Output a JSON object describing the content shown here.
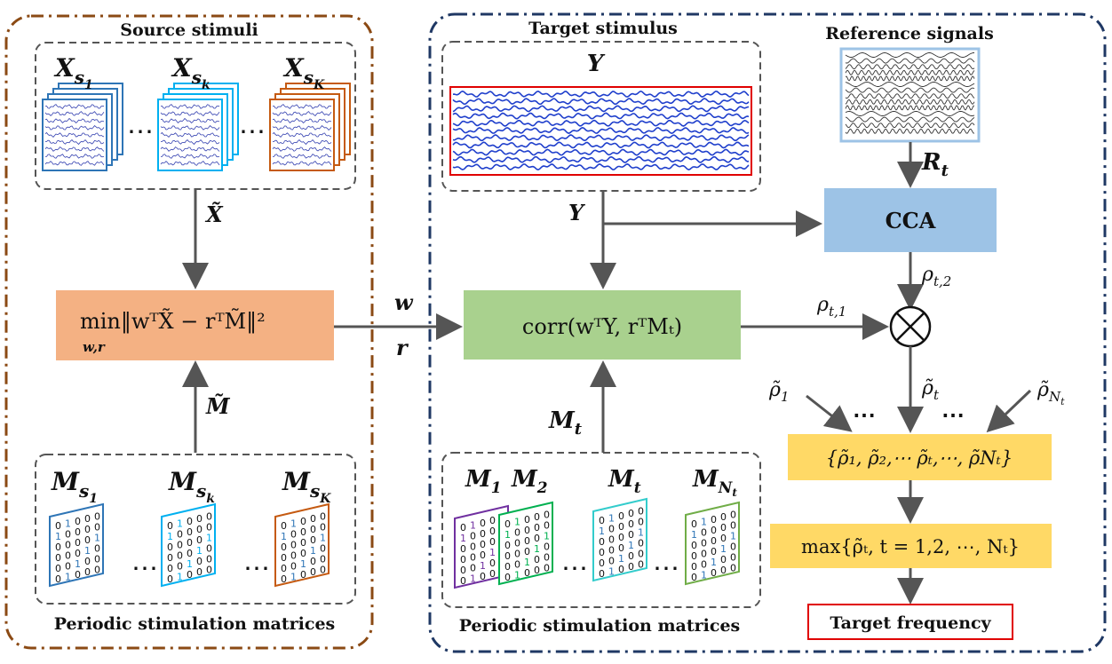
{
  "panels": {
    "source_title": "Source stimuli",
    "target_title": "Target stimulus",
    "reference_title": "Reference signals",
    "periodic_left": "Periodic stimulation matrices",
    "periodic_right": "Periodic stimulation matrices"
  },
  "symbols": {
    "xs1_base": "X",
    "xs1_sub": "s",
    "xs1_subsub": "1",
    "xsk_base": "X",
    "xsk_sub": "s",
    "xsk_subsub": "k",
    "xsK_base": "X",
    "xsK_sub": "s",
    "xsK_subsub": "K",
    "x_tilde": "X̃",
    "m_tilde": "M̃",
    "ms1_base": "M",
    "ms1_sub": "s",
    "ms1_subsub": "1",
    "msk_base": "M",
    "msk_sub": "s",
    "msk_subsub": "k",
    "msK_base": "M",
    "msK_sub": "s",
    "msK_subsub": "K",
    "y_top": "Y",
    "y_mid": "Y",
    "rt_base": "R",
    "rt_sub": "t",
    "w": "w",
    "r": "r",
    "mt_arrow_base": "M",
    "mt_arrow_sub": "t",
    "m1_base": "M",
    "m1_sub": "1",
    "m2_base": "M",
    "m2_sub": "2",
    "mt_base": "M",
    "mt_sub": "t",
    "mNt_base": "M",
    "mNt_sub": "N",
    "mNt_subsub": "t",
    "rho_t2": "ρ",
    "rho_t2_sub": "t,2",
    "rho_t1": "ρ",
    "rho_t1_sub": "t,1",
    "rho1": "ρ̃",
    "rho1_sub": "1",
    "rhot": "ρ̃",
    "rhot_sub": "t",
    "rhoNt": "ρ̃",
    "rhoNt_sub": "N",
    "rhoNt_subsub": "t",
    "ellipsis_left": "⋯",
    "ellipsis_right": "⋯"
  },
  "boxes": {
    "min_box": "min‖wᵀX̃ − rᵀM̃‖²",
    "min_under": "w,r",
    "corr_box": "corr(wᵀY, rᵀMₜ)",
    "cca_box": "CCA",
    "set_box": "{ρ̃₁, ρ̃₂,⋯ ρ̃ₜ,⋯, ρ̃Nₜ}",
    "max_box": "max{ρ̃ₜ, t = 1,2, ⋯, Nₜ}",
    "target_box": "Target frequency"
  },
  "matrix_digits": {
    "row_a": "0100000",
    "row_b": "00100",
    "row_c": "000100",
    "row_d": "00000"
  },
  "colors": {
    "brown_border": "#8B4A14",
    "navy_border": "#1F3864",
    "arrow": "#555555",
    "orange_box": "#F4B183",
    "green_box": "#A9D18E",
    "blue_box": "#9DC3E6",
    "yellow_box": "#FFD966",
    "red": "#E00000",
    "signal_blue": "#1F3FCC",
    "stack_blue": "#2E75B6",
    "stack_cyan": "#00B0F0",
    "stack_orange": "#C55A11",
    "m_purple": "#7030A0",
    "m_green": "#00B050",
    "m_cyan": "#33CCCC",
    "m_olive": "#70AD47"
  }
}
